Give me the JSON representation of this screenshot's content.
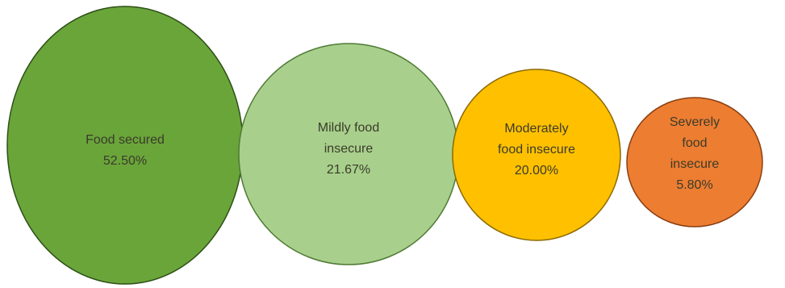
{
  "chart_data": {
    "type": "bubble",
    "series": [
      {
        "label_lines": [
          "Food secured",
          "52.50%"
        ],
        "category": "Food secured",
        "value": 52.5,
        "fill": "#6aa53a",
        "stroke": "#2d4f16"
      },
      {
        "label_lines": [
          "Mildly food",
          "insecure",
          "21.67%"
        ],
        "category": "Mildly food insecure",
        "value": 21.67,
        "fill": "#a8d08c",
        "stroke": "#4f7a35"
      },
      {
        "label_lines": [
          "Moderately",
          "food insecure",
          "20.00%"
        ],
        "category": "Moderately food insecure",
        "value": 20.0,
        "fill": "#ffc000",
        "stroke": "#8b6a00"
      },
      {
        "label_lines": [
          "Severely",
          "food",
          "insecure",
          "5.80%"
        ],
        "category": "Severely food insecure",
        "value": 5.8,
        "fill": "#ed7d31",
        "stroke": "#8a3f10"
      }
    ]
  }
}
